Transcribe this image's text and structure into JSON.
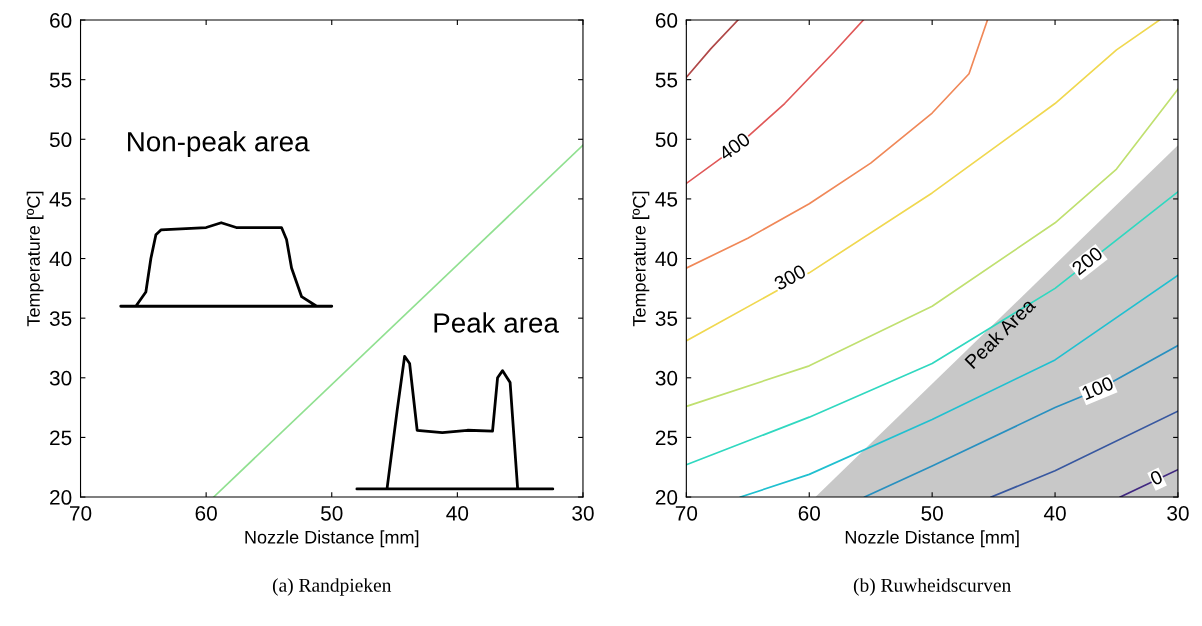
{
  "chart_data": [
    {
      "type": "line",
      "title": "(a) Randpieken",
      "xlabel": "Nozzle Distance [mm]",
      "ylabel": "Temperature [ºC]",
      "xlim": [
        70,
        30
      ],
      "ylim": [
        20,
        60
      ],
      "xticks": [
        70,
        60,
        50,
        40,
        30
      ],
      "yticks": [
        20,
        25,
        30,
        35,
        40,
        45,
        50,
        55,
        60
      ],
      "grid": false,
      "series": [
        {
          "color": "#90e090",
          "x": [
            59.4,
            30
          ],
          "values": [
            20,
            49.5
          ]
        }
      ],
      "annotations": [
        "Non-peak area",
        "Peak area"
      ]
    },
    {
      "type": "line",
      "title": "(b) Ruwheidscurven",
      "xlabel": "Nozzle Distance [mm]",
      "ylabel": "Temperature [ºC]",
      "xlim": [
        70,
        30
      ],
      "ylim": [
        20,
        60
      ],
      "xticks": [
        70,
        60,
        50,
        40,
        30
      ],
      "yticks": [
        20,
        25,
        30,
        35,
        40,
        45,
        50,
        55,
        60
      ],
      "grid": false,
      "series": [
        {
          "type": "area",
          "color": "#c8c8c8",
          "x": [
            59.5,
            30
          ],
          "values": [
            20,
            49.5
          ]
        },
        {
          "color": "#b04848",
          "x": [
            70,
            68,
            65.8
          ],
          "values": [
            55.2,
            57.6,
            60
          ]
        },
        {
          "color": "#e05858",
          "x": [
            70,
            66,
            62,
            58,
            55.6
          ],
          "values": [
            46.3,
            49.3,
            53,
            57.3,
            60
          ]
        },
        {
          "color": "#f08858",
          "x": [
            70,
            65,
            60,
            55,
            50,
            47,
            45.5
          ],
          "values": [
            39.2,
            41.7,
            44.6,
            48,
            52.2,
            55.5,
            60
          ]
        },
        {
          "color": "#f0d850",
          "x": [
            70,
            60,
            50,
            40,
            35,
            31.5
          ],
          "values": [
            33.1,
            38.8,
            45.5,
            53,
            57.5,
            60
          ]
        },
        {
          "color": "#c0e070",
          "x": [
            70,
            60,
            50,
            40,
            35,
            30
          ],
          "values": [
            27.6,
            31,
            36,
            43,
            47.5,
            54.2
          ]
        },
        {
          "color": "#30d8c0",
          "x": [
            70,
            60,
            50,
            40,
            30
          ],
          "values": [
            22.7,
            26.7,
            31.2,
            37.5,
            45.6
          ]
        },
        {
          "color": "#20c0d0",
          "x": [
            65.6,
            60,
            50,
            40,
            30
          ],
          "values": [
            20,
            21.9,
            26.5,
            31.5,
            38.6
          ]
        },
        {
          "color": "#2890c0",
          "x": [
            55.5,
            50,
            40,
            36.5,
            30
          ],
          "values": [
            20,
            22.6,
            27.5,
            29,
            32.7
          ]
        },
        {
          "color": "#3858a0",
          "x": [
            45.2,
            40,
            30
          ],
          "values": [
            20,
            22.2,
            27.2
          ]
        },
        {
          "color": "#402880",
          "x": [
            34.7,
            30
          ],
          "values": [
            20,
            22.3
          ]
        }
      ],
      "annotations": [
        {
          "text": "400",
          "x": 66,
          "y": 49.3
        },
        {
          "text": "300",
          "x": 61.5,
          "y": 38.3
        },
        {
          "text": "200",
          "x": 37.3,
          "y": 39.7
        },
        {
          "text": "100",
          "x": 36.5,
          "y": 29
        },
        {
          "text": "0",
          "x": 31.7,
          "y": 21.5
        },
        "Peak Area"
      ]
    }
  ]
}
